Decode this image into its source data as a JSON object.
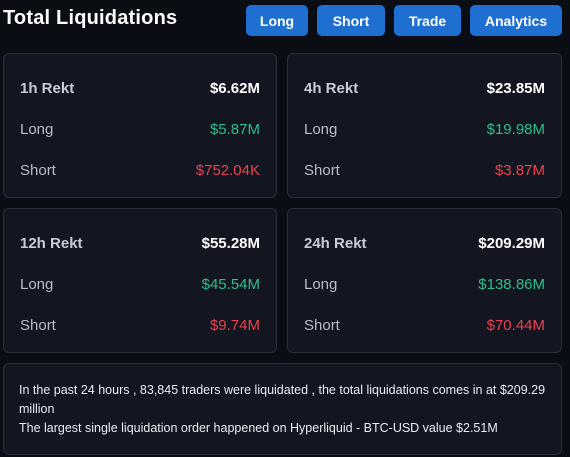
{
  "header": {
    "title": "Total Liquidations",
    "buttons": {
      "long": "Long",
      "short": "Short",
      "trade": "Trade",
      "analytics": "Analytics"
    }
  },
  "cards": {
    "h1": {
      "label": "1h Rekt",
      "total": "$6.62M",
      "long_label": "Long",
      "long": "$5.87M",
      "short_label": "Short",
      "short": "$752.04K"
    },
    "h4": {
      "label": "4h Rekt",
      "total": "$23.85M",
      "long_label": "Long",
      "long": "$19.98M",
      "short_label": "Short",
      "short": "$3.87M"
    },
    "h12": {
      "label": "12h Rekt",
      "total": "$55.28M",
      "long_label": "Long",
      "long": "$45.54M",
      "short_label": "Short",
      "short": "$9.74M"
    },
    "h24": {
      "label": "24h Rekt",
      "total": "$209.29M",
      "long_label": "Long",
      "long": "$138.86M",
      "short_label": "Short",
      "short": "$70.44M"
    }
  },
  "summary": {
    "line1": "In the past 24 hours , 83,845 traders were liquidated , the total liquidations comes in at $209.29 million",
    "line2": "The largest single liquidation order happened on Hyperliquid - BTC-USD value $2.51M"
  },
  "colors": {
    "accent": "#1f6fd1",
    "long": "#2fbf8a",
    "short": "#e8434f",
    "card_bg": "#131620",
    "page_bg": "#0b0d14"
  }
}
